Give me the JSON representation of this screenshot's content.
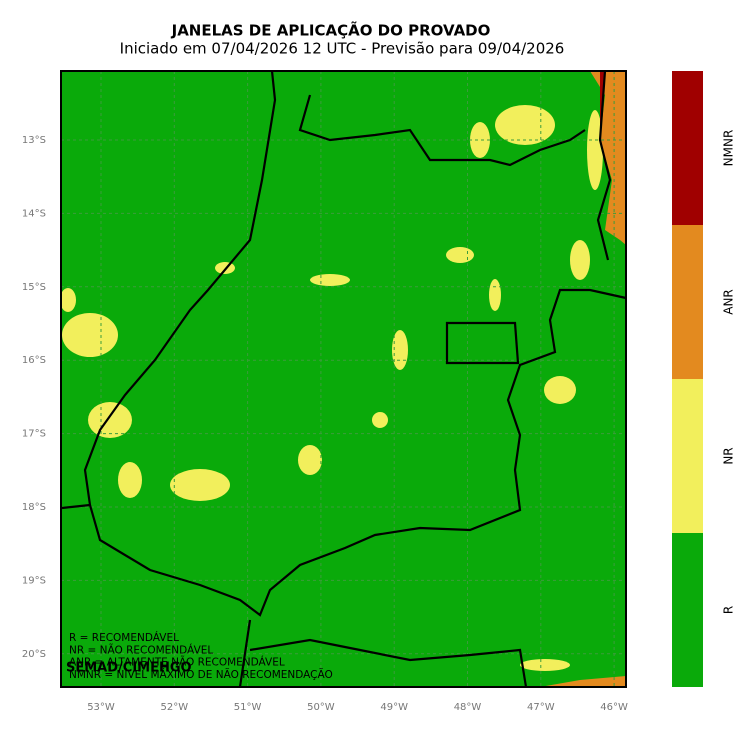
{
  "title": "JANELAS DE APLICAÇÃO DO PROVADO",
  "subtitle": "Iniciado em 07/04/2026 12 UTC - Previsão para 09/04/2026",
  "map": {
    "lat_labels": [
      "13°S",
      "14°S",
      "15°S",
      "16°S",
      "17°S",
      "18°S",
      "19°S",
      "20°S"
    ],
    "lon_labels": [
      "53°W",
      "52°W",
      "51°W",
      "50°W",
      "49°W",
      "48°W",
      "47°W",
      "46°W"
    ],
    "grid": true
  },
  "notes": [
    "R = RECOMENDÁVEL",
    "NR = NÃO RECOMENDÁVEL",
    "ANR = ALTAMENTE NÃO RECOMENDÁVEL",
    "NMNR = NÍVEL MÁXIMO DE NÃO RECOMENDAÇÃO"
  ],
  "credit": "SEMAD/CIMEHGO",
  "colorbar": [
    {
      "label": "R",
      "color": "#0aaa0a"
    },
    {
      "label": "NR",
      "color": "#f2ef5c"
    },
    {
      "label": "ANR",
      "color": "#e38a1f"
    },
    {
      "label": "NMNR",
      "color": "#a00000"
    }
  ]
}
